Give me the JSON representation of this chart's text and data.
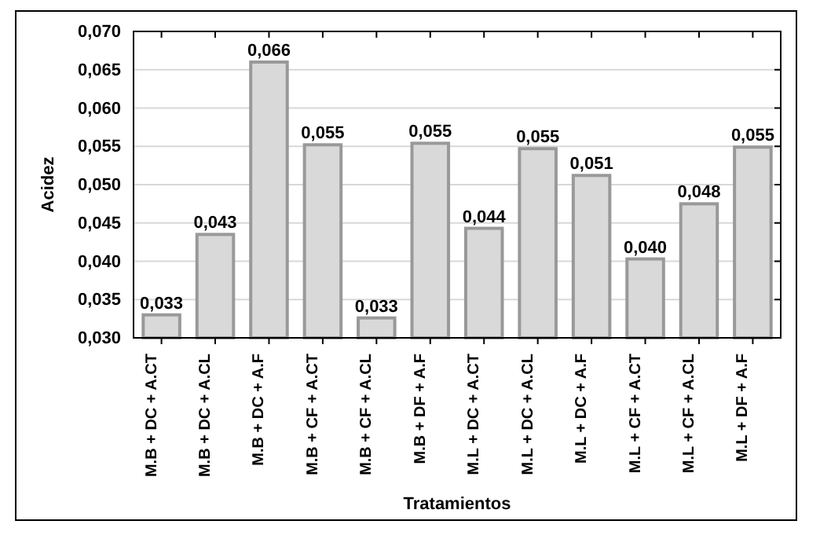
{
  "chart_data": {
    "type": "bar",
    "xlabel": "Tratamientos",
    "ylabel": "Acidez",
    "categories": [
      "M.B + DC + A.CT",
      "M.B + DC + A.CL",
      "M.B + DC + A.F",
      "M.B + CF + A.CT",
      "M.B + CF + A.CL",
      "M.B + DF + A.F",
      "M.L + DC + A.CT",
      "M.L + DC + A.CL",
      "M.L + DC + A.F",
      "M.L + CF + A.CT",
      "M.L + CF + A.CL",
      "M.L + DF + A.F"
    ],
    "values": [
      0.033,
      0.0435,
      0.066,
      0.0552,
      0.0326,
      0.0554,
      0.0443,
      0.0547,
      0.0512,
      0.0403,
      0.0475,
      0.0549
    ],
    "value_labels": [
      "0,033",
      "0,043",
      "0,066",
      "0,055",
      "0,033",
      "0,055",
      "0,044",
      "0,055",
      "0,051",
      "0,040",
      "0,048",
      "0,055"
    ],
    "color": "#d9d9d9",
    "ylim": [
      0.03,
      0.07
    ],
    "yticks": [
      {
        "value": 0.03,
        "label": "0,030"
      },
      {
        "value": 0.035,
        "label": "0,035"
      },
      {
        "value": 0.04,
        "label": "0,040"
      },
      {
        "value": 0.045,
        "label": "0,045"
      },
      {
        "value": 0.05,
        "label": "0,050"
      },
      {
        "value": 0.055,
        "label": "0,055"
      },
      {
        "value": 0.06,
        "label": "0,060"
      },
      {
        "value": 0.065,
        "label": "0,065"
      },
      {
        "value": 0.07,
        "label": "0,070"
      }
    ],
    "grid": "y"
  }
}
